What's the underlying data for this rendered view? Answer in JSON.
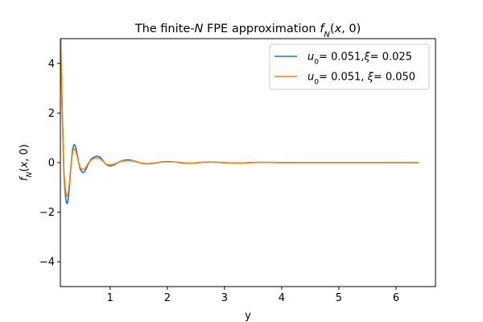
{
  "chart_data": {
    "type": "line",
    "title_parts": [
      {
        "text": "The finite-",
        "italic": false
      },
      {
        "text": "N",
        "italic": true
      },
      {
        "text": " FPE approximation ",
        "italic": false
      },
      {
        "text": "f",
        "italic": true
      },
      {
        "text": "N",
        "italic": true,
        "sub": true
      },
      {
        "text": "(",
        "italic": false
      },
      {
        "text": "x",
        "italic": true
      },
      {
        "text": ", 0)",
        "italic": false
      }
    ],
    "xlabel": "y",
    "ylabel_parts": [
      {
        "text": "f",
        "italic": true
      },
      {
        "text": "N",
        "italic": true,
        "sub": true
      },
      {
        "text": "(",
        "italic": false
      },
      {
        "text": "x",
        "italic": true
      },
      {
        "text": ", 0)",
        "italic": false
      }
    ],
    "xlim": [
      0.13,
      6.69
    ],
    "ylim": [
      -5,
      5
    ],
    "xticks": [
      1,
      2,
      3,
      4,
      5,
      6
    ],
    "xtick_labels": [
      "1",
      "2",
      "3",
      "4",
      "5",
      "6"
    ],
    "yticks": [
      -4,
      -2,
      0,
      2,
      4
    ],
    "ytick_labels": [
      "−4",
      "−2",
      "0",
      "2",
      "4"
    ],
    "grid": false,
    "legend_position": "top-right",
    "x_range": [
      0.13,
      6.4
    ],
    "series": [
      {
        "name_parts": [
          {
            "text": "u",
            "italic": true
          },
          {
            "text": "0",
            "sub": true
          },
          {
            "text": "= 0.051,",
            "italic": false
          },
          {
            "text": "ξ",
            "italic": true
          },
          {
            "text": "= 0.025",
            "italic": false
          }
        ],
        "color": "#1f77b4",
        "points": [
          [
            0.13,
            5.5
          ],
          [
            0.16,
            2.4
          ],
          [
            0.19,
            -0.3
          ],
          [
            0.22,
            -1.35
          ],
          [
            0.25,
            -1.65
          ],
          [
            0.28,
            -1.2
          ],
          [
            0.31,
            -0.3
          ],
          [
            0.34,
            0.45
          ],
          [
            0.37,
            0.72
          ],
          [
            0.4,
            0.6
          ],
          [
            0.43,
            0.25
          ],
          [
            0.47,
            -0.2
          ],
          [
            0.5,
            -0.35
          ],
          [
            0.53,
            -0.4
          ],
          [
            0.57,
            -0.3
          ],
          [
            0.62,
            -0.05
          ],
          [
            0.67,
            0.14
          ],
          [
            0.72,
            0.22
          ],
          [
            0.77,
            0.26
          ],
          [
            0.82,
            0.22
          ],
          [
            0.87,
            0.1
          ],
          [
            0.92,
            -0.05
          ],
          [
            0.97,
            -0.12
          ],
          [
            1.02,
            -0.13
          ],
          [
            1.08,
            -0.08
          ],
          [
            1.15,
            0.02
          ],
          [
            1.22,
            0.08
          ],
          [
            1.3,
            0.11
          ],
          [
            1.38,
            0.09
          ],
          [
            1.46,
            0.04
          ],
          [
            1.54,
            -0.02
          ],
          [
            1.62,
            -0.05
          ],
          [
            1.72,
            -0.04
          ],
          [
            1.82,
            0.0
          ],
          [
            1.92,
            0.03
          ],
          [
            2.02,
            0.04
          ],
          [
            2.15,
            0.02
          ],
          [
            2.3,
            -0.02
          ],
          [
            2.45,
            -0.02
          ],
          [
            2.6,
            0.01
          ],
          [
            2.75,
            0.02
          ],
          [
            2.9,
            0.01
          ],
          [
            3.1,
            -0.01
          ],
          [
            3.3,
            -0.01
          ],
          [
            3.55,
            0.01
          ],
          [
            3.8,
            0.01
          ],
          [
            4.1,
            0.0
          ],
          [
            4.5,
            0.0
          ],
          [
            5.0,
            0.0
          ],
          [
            5.5,
            0.0
          ],
          [
            6.0,
            0.0
          ],
          [
            6.4,
            0.0
          ]
        ]
      },
      {
        "name_parts": [
          {
            "text": "u",
            "italic": true
          },
          {
            "text": "0",
            "sub": true
          },
          {
            "text": "= 0.051, ",
            "italic": false
          },
          {
            "text": "ξ",
            "italic": true
          },
          {
            "text": "= 0.050",
            "italic": false
          }
        ],
        "color": "#ff7f0e",
        "points": [
          [
            0.13,
            5.5
          ],
          [
            0.16,
            2.2
          ],
          [
            0.19,
            -0.2
          ],
          [
            0.22,
            -1.1
          ],
          [
            0.25,
            -1.35
          ],
          [
            0.28,
            -1.0
          ],
          [
            0.31,
            -0.25
          ],
          [
            0.34,
            0.35
          ],
          [
            0.37,
            0.55
          ],
          [
            0.4,
            0.45
          ],
          [
            0.43,
            0.2
          ],
          [
            0.47,
            -0.15
          ],
          [
            0.5,
            -0.25
          ],
          [
            0.53,
            -0.28
          ],
          [
            0.57,
            -0.2
          ],
          [
            0.62,
            -0.02
          ],
          [
            0.67,
            0.1
          ],
          [
            0.72,
            0.17
          ],
          [
            0.77,
            0.19
          ],
          [
            0.82,
            0.16
          ],
          [
            0.87,
            0.07
          ],
          [
            0.92,
            -0.04
          ],
          [
            0.97,
            -0.09
          ],
          [
            1.02,
            -0.09
          ],
          [
            1.08,
            -0.05
          ],
          [
            1.15,
            0.02
          ],
          [
            1.22,
            0.06
          ],
          [
            1.3,
            0.08
          ],
          [
            1.38,
            0.07
          ],
          [
            1.46,
            0.03
          ],
          [
            1.54,
            -0.01
          ],
          [
            1.62,
            -0.04
          ],
          [
            1.72,
            -0.03
          ],
          [
            1.82,
            0.0
          ],
          [
            1.92,
            0.02
          ],
          [
            2.02,
            0.03
          ],
          [
            2.15,
            0.02
          ],
          [
            2.3,
            -0.01
          ],
          [
            2.45,
            -0.02
          ],
          [
            2.6,
            0.01
          ],
          [
            2.75,
            0.02
          ],
          [
            2.9,
            0.01
          ],
          [
            3.1,
            -0.01
          ],
          [
            3.3,
            -0.01
          ],
          [
            3.55,
            0.01
          ],
          [
            3.8,
            0.01
          ],
          [
            4.1,
            0.0
          ],
          [
            4.5,
            0.0
          ],
          [
            5.0,
            0.0
          ],
          [
            5.5,
            0.0
          ],
          [
            6.0,
            0.0
          ],
          [
            6.4,
            0.0
          ]
        ]
      }
    ]
  }
}
